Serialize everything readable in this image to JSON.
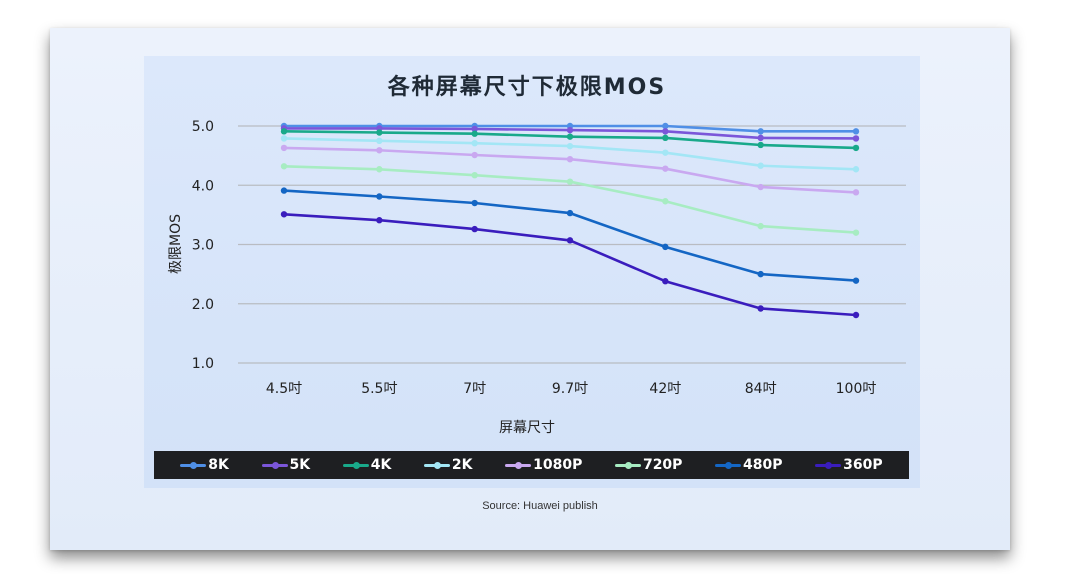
{
  "chart_data": {
    "type": "line",
    "title": "各种屏幕尺寸下极限MOS",
    "xlabel": "屏幕尺寸",
    "ylabel": "极限MOS",
    "categories": [
      "4.5吋",
      "5.5吋",
      "7吋",
      "9.7吋",
      "42吋",
      "84吋",
      "100吋"
    ],
    "yticks": [
      "1.0",
      "2.0",
      "3.0",
      "4.0",
      "5.0"
    ],
    "ylim": [
      1.0,
      5.0
    ],
    "grid": true,
    "legend_position": "bottom",
    "series": [
      {
        "name": "8K",
        "color": "#4f8fe6",
        "values": [
          5.0,
          5.0,
          5.0,
          5.0,
          5.0,
          4.91,
          4.91
        ]
      },
      {
        "name": "5K",
        "color": "#7b56d9",
        "values": [
          4.96,
          4.96,
          4.95,
          4.93,
          4.91,
          4.8,
          4.79
        ]
      },
      {
        "name": "4K",
        "color": "#19a98a",
        "values": [
          4.91,
          4.89,
          4.87,
          4.82,
          4.8,
          4.68,
          4.63
        ]
      },
      {
        "name": "2K",
        "color": "#a3e6f5",
        "values": [
          4.79,
          4.75,
          4.71,
          4.66,
          4.55,
          4.33,
          4.27
        ]
      },
      {
        "name": "1080P",
        "color": "#c9a8f0",
        "values": [
          4.63,
          4.59,
          4.51,
          4.44,
          4.28,
          3.97,
          3.88
        ]
      },
      {
        "name": "720P",
        "color": "#a7ecc2",
        "values": [
          4.32,
          4.27,
          4.17,
          4.06,
          3.73,
          3.31,
          3.2
        ]
      },
      {
        "name": "480P",
        "color": "#1466c4",
        "values": [
          3.91,
          3.81,
          3.7,
          3.53,
          2.96,
          2.5,
          2.39
        ]
      },
      {
        "name": "360P",
        "color": "#3a1dbd",
        "values": [
          3.51,
          3.41,
          3.26,
          3.07,
          2.38,
          1.92,
          1.81
        ]
      }
    ]
  },
  "source": "Source: Huawei publish"
}
